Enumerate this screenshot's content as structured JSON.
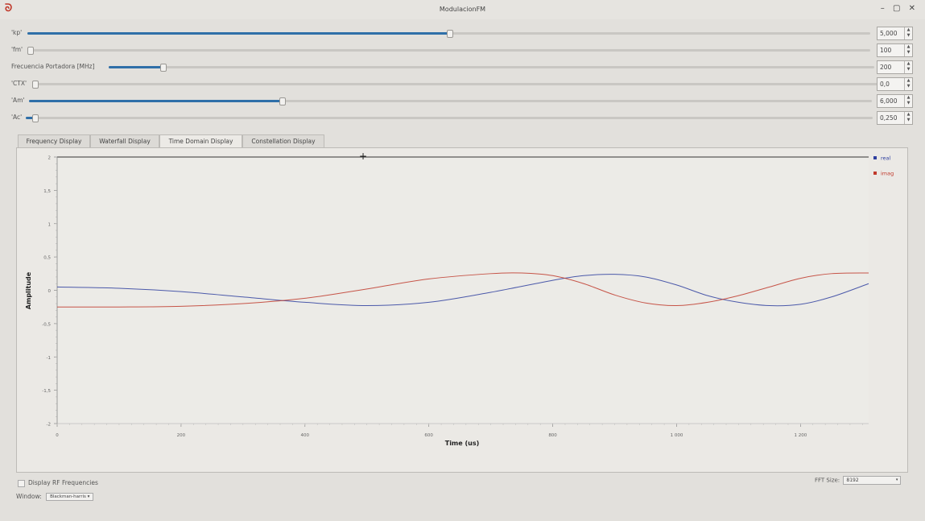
{
  "window": {
    "title": "ModulacionFM",
    "controls": [
      "–",
      "▢",
      "✕"
    ]
  },
  "params": [
    {
      "label": "'kp'",
      "value": "5,000",
      "fill": 0.5
    },
    {
      "label": "'fm'",
      "value": "100",
      "fill": 0.0
    },
    {
      "label": "Frecuencia Portadora [MHz]",
      "value": "200",
      "fill": 0.07
    },
    {
      "label": "'CTX'",
      "value": "0,0",
      "fill": 0.0
    },
    {
      "label": "'Am'",
      "value": "6,000",
      "fill": 0.3
    },
    {
      "label": "'Ac'",
      "value": "0,250",
      "fill": 0.01
    }
  ],
  "tabs": [
    {
      "label": "Frequency Display",
      "active": false
    },
    {
      "label": "Waterfall Display",
      "active": false
    },
    {
      "label": "Time Domain Display",
      "active": true
    },
    {
      "label": "Constellation Display",
      "active": false
    }
  ],
  "chart_data": {
    "type": "line",
    "xlabel": "Time (us)",
    "ylabel": "Amplitude",
    "xlim": [
      0,
      1310
    ],
    "ylim": [
      -2,
      2
    ],
    "xticks": [
      "0",
      "200",
      "400",
      "600",
      "800",
      "1 000",
      "1 200"
    ],
    "xtick_values": [
      0,
      200,
      400,
      600,
      800,
      1000,
      1200
    ],
    "yticks": [
      "2",
      "1,5",
      "1",
      "0,5",
      "0",
      "-0,5",
      "-1",
      "-1,5",
      "-2"
    ],
    "ytick_values": [
      2,
      1.5,
      1,
      0.5,
      0,
      -0.5,
      -1,
      -1.5,
      -2
    ],
    "legend": "top-right",
    "series": [
      {
        "name": "real",
        "color": "#2f3f9f",
        "x": [
          0,
          100,
          200,
          300,
          400,
          500,
          600,
          700,
          800,
          850,
          900,
          950,
          1000,
          1050,
          1100,
          1150,
          1200,
          1250,
          1310
        ],
        "y": [
          0.05,
          0.03,
          -0.02,
          -0.1,
          -0.18,
          -0.23,
          -0.18,
          -0.03,
          0.15,
          0.22,
          0.24,
          0.2,
          0.08,
          -0.08,
          -0.18,
          -0.23,
          -0.21,
          -0.1,
          0.1
        ]
      },
      {
        "name": "imag",
        "color": "#c0392b",
        "x": [
          0,
          100,
          200,
          300,
          400,
          500,
          600,
          700,
          750,
          800,
          850,
          900,
          950,
          1000,
          1050,
          1100,
          1150,
          1200,
          1250,
          1310
        ],
        "y": [
          -0.25,
          -0.25,
          -0.24,
          -0.2,
          -0.12,
          0.02,
          0.17,
          0.25,
          0.26,
          0.22,
          0.1,
          -0.07,
          -0.19,
          -0.23,
          -0.18,
          -0.08,
          0.05,
          0.18,
          0.25,
          0.26
        ]
      }
    ]
  },
  "bottom": {
    "display_rf_label": "Display RF Frequencies",
    "window_label": "Window:",
    "window_value": "Blackman-harris",
    "fft_label": "FFT Size:",
    "fft_value": "8192"
  }
}
